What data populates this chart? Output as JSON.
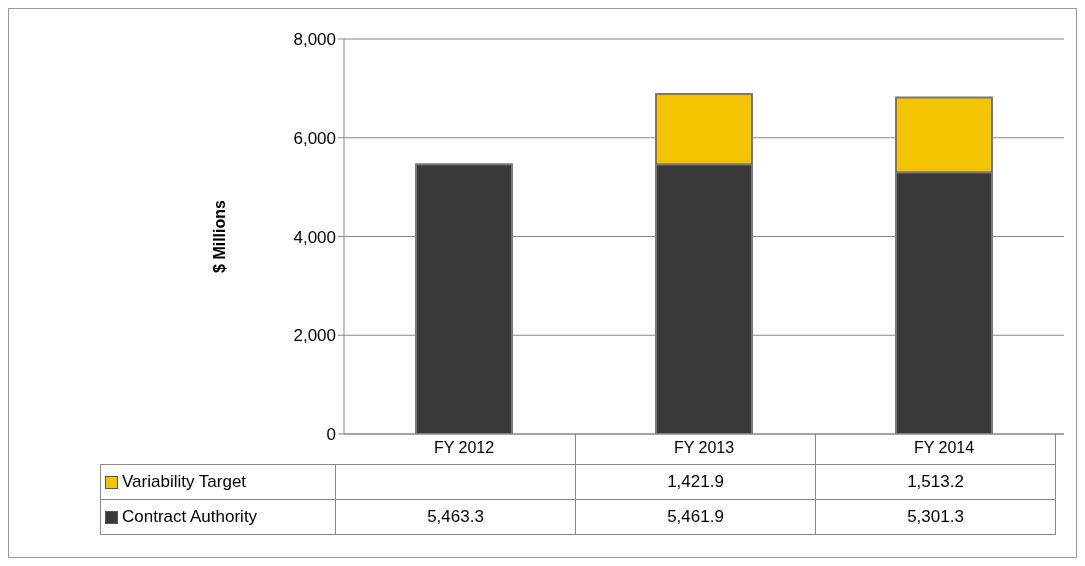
{
  "chart_data": {
    "type": "bar",
    "stacked": true,
    "ylabel": "$ Millions",
    "categories": [
      "FY 2012",
      "FY 2013",
      "FY 2014"
    ],
    "series": [
      {
        "name": "Contract Authority",
        "color": "#3a3a3a",
        "values": [
          5463.3,
          5461.9,
          5301.3
        ],
        "value_labels": [
          "5,463.3",
          "5,461.9",
          "5,301.3"
        ]
      },
      {
        "name": "Variability Target",
        "color": "#f5c400",
        "values": [
          null,
          1421.9,
          1513.2
        ],
        "value_labels": [
          null,
          "1,421.9",
          "1,513.2"
        ]
      }
    ],
    "ylim": [
      0,
      8000
    ],
    "yticks": [
      {
        "value": 0,
        "label": "0"
      },
      {
        "value": 2000,
        "label": "2,000"
      },
      {
        "value": 4000,
        "label": "4,000"
      },
      {
        "value": 6000,
        "label": "6,000"
      },
      {
        "value": 8000,
        "label": "8,000"
      }
    ],
    "grid": "y",
    "legend": "bottom"
  }
}
